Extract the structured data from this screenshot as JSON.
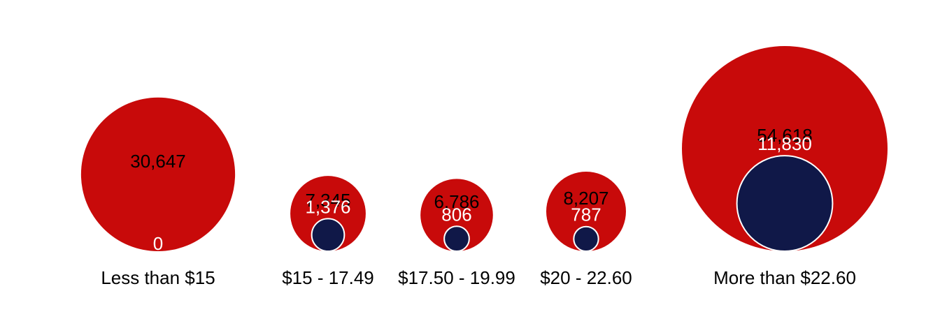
{
  "chart_data": {
    "type": "bubble",
    "categories": [
      "Less than $15",
      "$15 - 17.49",
      "$17.50 - 19.99",
      "$20 - 22.60",
      "More than $22.60"
    ],
    "series": [
      {
        "values": [
          30647,
          7345,
          6786,
          8207,
          54618
        ]
      },
      {
        "values": [
          0,
          1376,
          806,
          787,
          11830
        ]
      }
    ],
    "value_labels": {
      "outer": [
        "30,647",
        "7,345",
        "6,786",
        "8,207",
        "54,618"
      ],
      "inner": [
        "0",
        "1,376",
        "806",
        "787",
        "11,830"
      ]
    },
    "colors": {
      "outer": "#c80a0a",
      "inner": "#101848",
      "inner_stroke": "#ffffff"
    },
    "legend": "none",
    "grid": false
  }
}
